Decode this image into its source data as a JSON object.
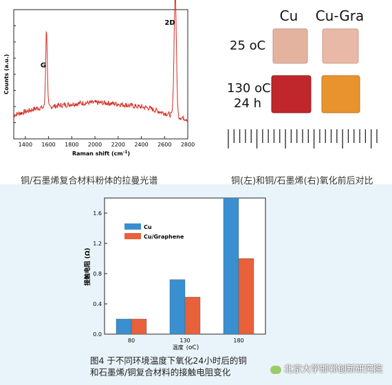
{
  "raman": {
    "ylabel": "Counts (a.u.)",
    "xlabel": "Raman shift (cm",
    "xlabel_sup": "-1",
    "xlabel_close": ")",
    "peak_g": "G",
    "peak_2d": "2D",
    "xticks": [
      "1400",
      "1600",
      "1800",
      "2000",
      "2200",
      "2400",
      "2600",
      "2800"
    ],
    "caption": "铜/石墨烯复合材料粉体的拉曼光谱",
    "color": "#d42a20"
  },
  "photo": {
    "col1": "Cu",
    "col2": "Cu-Gra",
    "row1": "25 ",
    "row1_unit": "oC",
    "row2_line1": "130 ",
    "row2_unit": "oC",
    "row2_line2": "24 h",
    "caption": "铜(左)和铜/石墨烯(右)氧化前后对比"
  },
  "chart_data": {
    "type": "bar",
    "categories": [
      "80",
      "130",
      "180"
    ],
    "series": [
      {
        "name": "Cu",
        "values": [
          0.2,
          0.72,
          1.8
        ],
        "color": "#3a8fd0"
      },
      {
        "name": "Cu/Graphene",
        "values": [
          0.2,
          0.49,
          1.0
        ],
        "color": "#e8613a"
      }
    ],
    "ylabel": "接触电阻 (Ω)",
    "xlabel": "温度",
    "xlabel_unit": "(",
    "xlabel_unit2": "oC)",
    "yticks": [
      "0.0",
      "0.4",
      "0.8",
      "1.2",
      "1.6"
    ],
    "ylim": [
      0,
      1.8
    ],
    "legend_position": "top-left"
  },
  "figure_caption_line1": "图4 于不同环境温度下氧化24小时后的铜",
  "figure_caption_line2": "和石墨烯/铜复合材料的接触电阻变化",
  "watermark": "北京大学邯郸创新研究院"
}
